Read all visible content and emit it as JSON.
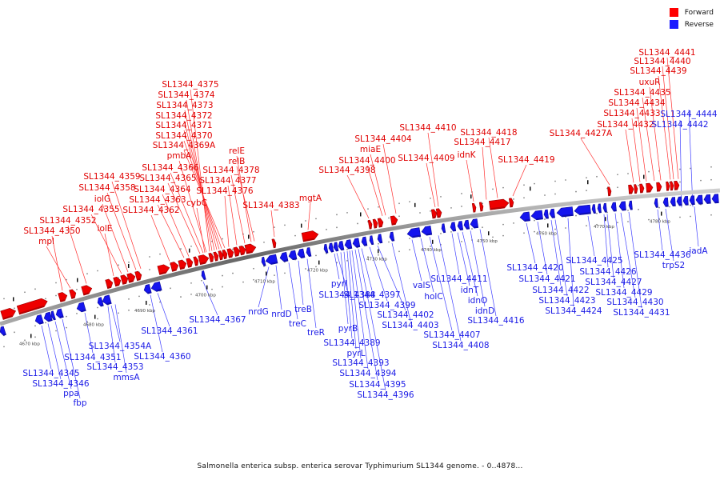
{
  "legend": {
    "forward": {
      "label": "Forward",
      "color": "#ff0000"
    },
    "reverse": {
      "label": "Reverse",
      "color": "#1a1aff"
    }
  },
  "caption": "Salmonella enterica subsp. enterica serovar Typhimurium SL1344 genome. - 0..4878...",
  "axis_ticks": [
    "4670 kbp",
    "4680 kbp",
    "4690 kbp",
    "4700 kbp",
    "4710 kbp",
    "4720 kbp",
    "4730 kbp",
    "4740 kbp",
    "4750 kbp",
    "4760 kbp",
    "4770 kbp",
    "4780 kbp"
  ],
  "forward_genes": [
    "SL1344_4375",
    "SL1344_4374",
    "SL1344_4373",
    "SL1344_4372",
    "SL1344_4371",
    "SL1344_4370",
    "SL1344_4369A",
    "pmbA",
    "SL1344_4366",
    "SL1344_4365",
    "SL1344_4364",
    "SL1344_4363",
    "SL1344_4362",
    "cybC",
    "relE",
    "relB",
    "SL1344_4378",
    "SL1344_4377",
    "SL1344_4376",
    "SL1344_4359",
    "SL1344_4358",
    "iolG",
    "SL1344_4355",
    "SL1344_4352",
    "SL1344_4350",
    "mpl",
    "iolE",
    "SL1344_4383",
    "mgtA",
    "SL1344_4404",
    "miaE",
    "SL1344_4400",
    "SL1344_4398",
    "SL1344_4410",
    "SL1344_4409",
    "SL1344_4418",
    "SL1344_4417",
    "idnK",
    "SL1344_4419",
    "SL1344_4427A",
    "SL1344_4441",
    "SL1344_4440",
    "SL1344_4439",
    "uxuR",
    "SL1344_4435",
    "SL1344_4434",
    "SL1344_4433",
    "SL1344_4432"
  ],
  "reverse_genes": [
    "SL1344_4444",
    "SL1344_4442",
    "SL1344_4345",
    "SL1344_4346",
    "ppa",
    "fbp",
    "SL1344_4351",
    "SL1344_4353",
    "SL1344_4354A",
    "mmsA",
    "SL1344_4360",
    "SL1344_4361",
    "SL1344_4367",
    "nrdG",
    "nrdD",
    "treC",
    "treB",
    "treR",
    "pyrI",
    "SL1344_4388",
    "pyrB",
    "SL1344_4389",
    "pyrL",
    "SL1344_4393",
    "SL1344_4394",
    "SL1344_4395",
    "SL1344_4396",
    "SL1344_4397",
    "SL1344_4399",
    "SL1344_4402",
    "SL1344_4403",
    "valS",
    "holC",
    "SL1344_4407",
    "SL1344_4408",
    "SL1344_4411",
    "idnT",
    "idnO",
    "idnD",
    "SL1344_4416",
    "SL1344_4420",
    "SL1344_4421",
    "SL1344_4422",
    "SL1344_4423",
    "SL1344_4424",
    "SL1344_4425",
    "SL1344_4426",
    "SL1344_4427",
    "SL1344_4429",
    "SL1344_4430",
    "SL1344_4431",
    "SL1344_4436",
    "trpS2",
    "iadA"
  ]
}
